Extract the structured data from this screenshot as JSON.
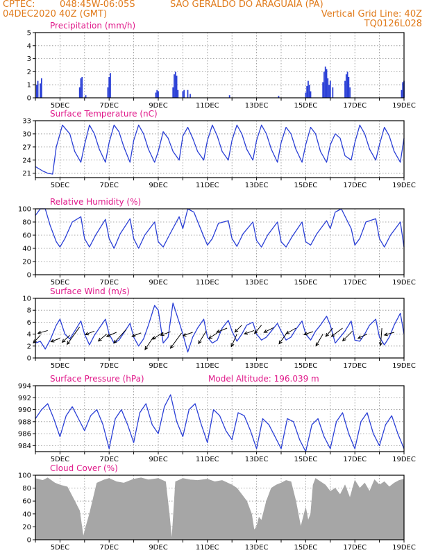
{
  "header": {
    "line1_left": "CPTEC:",
    "line1_coords": "048:45W-06:05S",
    "line1_station": "SAO GERALDO DO ARAGUAIA (PA)",
    "line2_left": "04DEC2020 40Z (GMT)",
    "line2_right": "Vertical Grid Line: 40Z",
    "line3_right": "TQ0126L028",
    "colors": {
      "header": "#e07a1a",
      "title": "#e0198a",
      "series": "#2a3fd6",
      "cloud": "#a6a6a6"
    }
  },
  "chart_data": [
    {
      "id": "precip",
      "type": "bar",
      "title": "Precipitation (mm/h)",
      "ylim": [
        0,
        5
      ],
      "yticks": [
        0,
        1,
        2,
        3,
        4,
        5
      ],
      "xlim": [
        4.0,
        19.0
      ],
      "xtick_labels": [
        "5DEC",
        "7DEC",
        "9DEC",
        "11DEC",
        "13DEC",
        "15DEC",
        "17DEC",
        "19DEC"
      ],
      "x": [
        4.05,
        4.1,
        4.2,
        4.25,
        5.8,
        5.85,
        5.9,
        6.05,
        6.95,
        7.0,
        7.05,
        8.9,
        8.95,
        9.0,
        9.6,
        9.65,
        9.7,
        9.75,
        9.8,
        10.0,
        10.05,
        10.2,
        10.3,
        11.9,
        13.9,
        15.0,
        15.05,
        15.1,
        15.15,
        15.2,
        15.7,
        15.75,
        15.8,
        15.85,
        15.9,
        15.95,
        16.0,
        16.1,
        16.6,
        16.65,
        16.7,
        16.75,
        16.8,
        18.9,
        18.95,
        19.0
      ],
      "values": [
        1.0,
        1.3,
        1.1,
        1.5,
        0.8,
        1.5,
        1.6,
        0.2,
        0.8,
        1.6,
        1.9,
        0.4,
        0.6,
        0.5,
        0.8,
        1.8,
        2.0,
        1.7,
        0.6,
        0.5,
        0.6,
        0.6,
        0.3,
        0.2,
        0.15,
        0.4,
        0.9,
        1.3,
        1.0,
        0.5,
        1.2,
        2.0,
        2.4,
        2.2,
        1.5,
        1.0,
        1.3,
        0.8,
        1.3,
        1.8,
        2.0,
        1.6,
        0.8,
        0.6,
        1.2,
        1.3
      ]
    },
    {
      "id": "temp",
      "type": "line",
      "title": "Surface Temperature (nC)",
      "ylim": [
        20,
        33
      ],
      "yticks": [
        21,
        24,
        27,
        30,
        33
      ],
      "xlim": [
        4.0,
        19.0
      ],
      "xtick_labels": [
        "5DEC",
        "7DEC",
        "9DEC",
        "11DEC",
        "13DEC",
        "15DEC",
        "17DEC",
        "19DEC"
      ],
      "x": [
        4.0,
        4.3,
        4.5,
        4.7,
        4.85,
        5.1,
        5.4,
        5.6,
        5.85,
        6.0,
        6.2,
        6.4,
        6.6,
        6.85,
        7.0,
        7.2,
        7.4,
        7.6,
        7.85,
        8.0,
        8.2,
        8.4,
        8.6,
        8.85,
        9.0,
        9.2,
        9.4,
        9.6,
        9.85,
        10.0,
        10.2,
        10.4,
        10.6,
        10.85,
        11.0,
        11.2,
        11.4,
        11.6,
        11.85,
        12.0,
        12.2,
        12.4,
        12.6,
        12.85,
        13.0,
        13.2,
        13.4,
        13.6,
        13.85,
        14.0,
        14.2,
        14.4,
        14.6,
        14.85,
        15.0,
        15.2,
        15.4,
        15.6,
        15.85,
        16.0,
        16.2,
        16.4,
        16.6,
        16.85,
        17.0,
        17.2,
        17.4,
        17.6,
        17.85,
        18.0,
        18.2,
        18.4,
        18.6,
        18.85,
        19.0
      ],
      "values": [
        22.5,
        21.5,
        21.0,
        20.8,
        27.0,
        32.0,
        30.0,
        26.0,
        23.5,
        27.5,
        32.0,
        30.0,
        26.5,
        23.5,
        28.0,
        32.0,
        30.5,
        27.0,
        23.5,
        28.5,
        32.0,
        30.0,
        26.5,
        23.5,
        26.0,
        30.5,
        29.0,
        26.0,
        24.0,
        29.5,
        31.5,
        29.0,
        26.0,
        24.0,
        28.5,
        32.0,
        29.5,
        26.0,
        24.0,
        28.5,
        32.0,
        30.0,
        26.5,
        24.0,
        28.5,
        32.0,
        30.0,
        26.5,
        23.5,
        28.0,
        31.5,
        30.0,
        26.5,
        23.5,
        27.5,
        31.5,
        30.0,
        26.0,
        23.5,
        27.5,
        30.0,
        29.0,
        25.0,
        24.0,
        28.0,
        32.0,
        30.0,
        26.5,
        24.0,
        27.5,
        31.5,
        29.5,
        26.0,
        23.5,
        29.0
      ]
    },
    {
      "id": "rh",
      "type": "line",
      "title": "Relative Humidity (%)",
      "ylim": [
        0,
        100
      ],
      "yticks": [
        0,
        20,
        40,
        60,
        80,
        100
      ],
      "xlim": [
        4.0,
        19.0
      ],
      "xtick_labels": [
        "5DEC",
        "7DEC",
        "9DEC",
        "11DEC",
        "13DEC",
        "15DEC",
        "17DEC",
        "19DEC"
      ],
      "x": [
        4.0,
        4.2,
        4.4,
        4.6,
        4.85,
        5.0,
        5.2,
        5.5,
        5.85,
        6.0,
        6.2,
        6.45,
        6.85,
        7.0,
        7.2,
        7.45,
        7.85,
        8.0,
        8.2,
        8.45,
        8.85,
        9.0,
        9.2,
        9.45,
        9.85,
        10.0,
        10.2,
        10.45,
        10.85,
        11.0,
        11.2,
        11.45,
        11.85,
        12.0,
        12.2,
        12.45,
        12.85,
        13.0,
        13.2,
        13.45,
        13.85,
        14.0,
        14.2,
        14.45,
        14.85,
        15.0,
        15.2,
        15.45,
        15.85,
        16.0,
        16.2,
        16.45,
        16.85,
        17.0,
        17.2,
        17.45,
        17.85,
        18.0,
        18.2,
        18.45,
        18.85,
        19.0
      ],
      "values": [
        90,
        100,
        100,
        75,
        50,
        42,
        55,
        80,
        88,
        55,
        42,
        60,
        84,
        55,
        40,
        62,
        85,
        55,
        40,
        60,
        80,
        50,
        42,
        60,
        88,
        70,
        100,
        95,
        58,
        45,
        55,
        78,
        82,
        55,
        43,
        62,
        80,
        52,
        42,
        60,
        80,
        50,
        42,
        58,
        80,
        50,
        45,
        62,
        82,
        70,
        95,
        100,
        70,
        45,
        55,
        80,
        85,
        55,
        42,
        60,
        80,
        42
      ]
    },
    {
      "id": "wind",
      "type": "line",
      "title": "Surface Wind (m/s)",
      "ylim": [
        0,
        10
      ],
      "yticks": [
        0,
        2,
        4,
        6,
        8,
        10
      ],
      "xlim": [
        4.0,
        19.0
      ],
      "xtick_labels": [
        "5DEC",
        "7DEC",
        "9DEC",
        "11DEC",
        "13DEC",
        "15DEC",
        "17DEC",
        "19DEC"
      ],
      "x": [
        4.0,
        4.2,
        4.4,
        4.6,
        4.85,
        5.0,
        5.2,
        5.4,
        5.6,
        5.85,
        6.0,
        6.2,
        6.4,
        6.6,
        6.85,
        7.0,
        7.2,
        7.4,
        7.6,
        7.85,
        8.0,
        8.2,
        8.4,
        8.6,
        8.85,
        9.0,
        9.2,
        9.4,
        9.6,
        9.85,
        10.0,
        10.2,
        10.4,
        10.6,
        10.85,
        11.0,
        11.2,
        11.4,
        11.6,
        11.85,
        12.0,
        12.2,
        12.4,
        12.6,
        12.85,
        13.0,
        13.2,
        13.4,
        13.6,
        13.85,
        14.0,
        14.2,
        14.4,
        14.6,
        14.85,
        15.0,
        15.2,
        15.4,
        15.6,
        15.85,
        16.0,
        16.2,
        16.4,
        16.6,
        16.85,
        17.0,
        17.2,
        17.4,
        17.6,
        17.85,
        18.0,
        18.2,
        18.4,
        18.6,
        18.85,
        19.0
      ],
      "values": [
        2.5,
        2.8,
        1.5,
        3.0,
        5.5,
        6.5,
        4.0,
        3.2,
        4.5,
        6.2,
        4.0,
        2.2,
        3.8,
        5.0,
        6.5,
        4.0,
        2.5,
        3.0,
        4.2,
        5.8,
        3.5,
        2.0,
        3.2,
        5.5,
        8.8,
        8.0,
        2.5,
        3.5,
        9.2,
        6.0,
        4.0,
        1.0,
        3.5,
        5.0,
        6.5,
        3.5,
        2.5,
        3.0,
        5.0,
        6.3,
        4.5,
        2.8,
        4.0,
        5.5,
        6.0,
        4.0,
        3.0,
        3.5,
        4.5,
        5.8,
        4.5,
        3.0,
        3.5,
        4.8,
        6.2,
        4.0,
        3.0,
        4.5,
        5.5,
        7.0,
        5.5,
        2.5,
        3.5,
        4.5,
        6.2,
        3.0,
        2.8,
        4.0,
        5.5,
        6.5,
        3.5,
        2.2,
        3.5,
        5.5,
        7.5,
        4.0
      ],
      "vectors": [
        {
          "x": 4.2,
          "y": 3.8,
          "dx": -10,
          "dy": 11
        },
        {
          "x": 4.5,
          "y": 4.6,
          "dx": -14,
          "dy": 4
        },
        {
          "x": 5.0,
          "y": 3.3,
          "dx": -13,
          "dy": 5
        },
        {
          "x": 5.4,
          "y": 3.8,
          "dx": -11,
          "dy": 10
        },
        {
          "x": 5.8,
          "y": 5.2,
          "dx": -18,
          "dy": 25
        },
        {
          "x": 6.4,
          "y": 4.5,
          "dx": -13,
          "dy": 5
        },
        {
          "x": 6.9,
          "y": 4.0,
          "dx": -12,
          "dy": 10
        },
        {
          "x": 7.3,
          "y": 4.3,
          "dx": -14,
          "dy": 6
        },
        {
          "x": 7.7,
          "y": 4.8,
          "dx": -18,
          "dy": 20
        },
        {
          "x": 8.3,
          "y": 4.2,
          "dx": -13,
          "dy": 5
        },
        {
          "x": 8.8,
          "y": 3.5,
          "dx": -12,
          "dy": 18
        },
        {
          "x": 9.2,
          "y": 4.3,
          "dx": -15,
          "dy": 10
        },
        {
          "x": 9.5,
          "y": 4.4,
          "dx": -14,
          "dy": 5
        },
        {
          "x": 9.95,
          "y": 4.2,
          "dx": -16,
          "dy": 22
        },
        {
          "x": 10.4,
          "y": 4.3,
          "dx": -14,
          "dy": 5
        },
        {
          "x": 10.95,
          "y": 4.5,
          "dx": -11,
          "dy": 18
        },
        {
          "x": 11.4,
          "y": 4.2,
          "dx": -12,
          "dy": 8
        },
        {
          "x": 11.8,
          "y": 5.0,
          "dx": -15,
          "dy": 6
        },
        {
          "x": 12.2,
          "y": 4.0,
          "dx": -8,
          "dy": 18
        },
        {
          "x": 12.4,
          "y": 5.5,
          "dx": -10,
          "dy": 10
        },
        {
          "x": 12.9,
          "y": 4.6,
          "dx": -14,
          "dy": 5
        },
        {
          "x": 13.2,
          "y": 5.5,
          "dx": -10,
          "dy": 12
        },
        {
          "x": 13.7,
          "y": 5.1,
          "dx": -14,
          "dy": 7
        },
        {
          "x": 14.2,
          "y": 4.0,
          "dx": -10,
          "dy": 14
        },
        {
          "x": 14.6,
          "y": 5.0,
          "dx": -14,
          "dy": 8
        },
        {
          "x": 15.3,
          "y": 4.4,
          "dx": -13,
          "dy": 4
        },
        {
          "x": 15.7,
          "y": 4.0,
          "dx": -10,
          "dy": 17
        },
        {
          "x": 16.1,
          "y": 5.0,
          "dx": -10,
          "dy": 12
        },
        {
          "x": 16.5,
          "y": 5.0,
          "dx": -16,
          "dy": 12
        },
        {
          "x": 16.9,
          "y": 4.5,
          "dx": -14,
          "dy": 14
        },
        {
          "x": 17.5,
          "y": 4.0,
          "dx": -13,
          "dy": 6
        },
        {
          "x": 18.1,
          "y": 5.0,
          "dx": -2,
          "dy": 25
        },
        {
          "x": 18.6,
          "y": 4.3,
          "dx": -14,
          "dy": 4
        }
      ]
    },
    {
      "id": "pres",
      "type": "line",
      "title": "Surface Pressure (hPa)",
      "subtitle": "Model Altitude: 196.039 m",
      "ylim": [
        983,
        994
      ],
      "yticks": [
        984,
        986,
        988,
        990,
        992,
        994
      ],
      "xlim": [
        4.0,
        19.0
      ],
      "xtick_labels": [
        "5DEC",
        "7DEC",
        "9DEC",
        "11DEC",
        "13DEC",
        "15DEC",
        "17DEC",
        "19DEC"
      ],
      "x": [
        4.0,
        4.25,
        4.5,
        4.75,
        5.0,
        5.25,
        5.5,
        5.75,
        6.0,
        6.25,
        6.5,
        6.75,
        7.0,
        7.25,
        7.5,
        7.75,
        8.0,
        8.25,
        8.5,
        8.75,
        9.0,
        9.25,
        9.5,
        9.75,
        10.0,
        10.25,
        10.5,
        10.75,
        11.0,
        11.25,
        11.5,
        11.75,
        12.0,
        12.25,
        12.5,
        12.75,
        13.0,
        13.25,
        13.5,
        13.75,
        14.0,
        14.25,
        14.5,
        14.75,
        15.0,
        15.25,
        15.5,
        15.75,
        16.0,
        16.25,
        16.5,
        16.75,
        17.0,
        17.25,
        17.5,
        17.75,
        18.0,
        18.25,
        18.5,
        18.75,
        19.0
      ],
      "values": [
        988.5,
        990,
        991,
        988.5,
        985.5,
        989,
        990.5,
        988.5,
        986.5,
        989,
        990,
        987.5,
        983.5,
        988.5,
        990,
        987.5,
        984.5,
        989.5,
        991,
        987.5,
        986,
        990.5,
        992.5,
        988,
        985.5,
        990,
        991,
        987.5,
        984.5,
        990,
        989,
        986.5,
        985,
        989.5,
        989,
        986.5,
        983.5,
        988.5,
        987.5,
        985.5,
        983.5,
        988.5,
        988,
        985,
        983,
        987.5,
        988.5,
        985.5,
        983.5,
        988,
        989.5,
        986,
        983.5,
        988,
        989.5,
        986,
        984,
        987.5,
        989,
        986,
        983.5
      ]
    },
    {
      "id": "cloud",
      "type": "area",
      "title": "Cloud Cover (%)",
      "ylim": [
        0,
        100
      ],
      "yticks": [
        0,
        20,
        40,
        60,
        80,
        100
      ],
      "xlim": [
        4.0,
        19.0
      ],
      "xtick_labels": [
        "5DEC",
        "7DEC",
        "9DEC",
        "11DEC",
        "13DEC",
        "15DEC",
        "17DEC",
        "19DEC"
      ],
      "x": [
        4.0,
        4.3,
        4.5,
        4.8,
        5.0,
        5.3,
        5.6,
        5.8,
        5.95,
        6.05,
        6.2,
        6.5,
        6.8,
        7.0,
        7.3,
        7.6,
        8.0,
        8.3,
        8.6,
        9.0,
        9.3,
        9.45,
        9.55,
        9.7,
        10.0,
        10.3,
        10.6,
        11.0,
        11.3,
        11.6,
        12.0,
        12.2,
        12.4,
        12.6,
        12.8,
        12.9,
        13.0,
        13.1,
        13.2,
        13.4,
        13.6,
        13.8,
        14.0,
        14.2,
        14.4,
        14.6,
        14.8,
        15.0,
        15.1,
        15.2,
        15.3,
        15.4,
        15.6,
        15.8,
        16.0,
        16.2,
        16.4,
        16.6,
        16.8,
        17.0,
        17.2,
        17.4,
        17.6,
        17.8,
        18.0,
        18.2,
        18.4,
        18.6,
        18.8,
        19.0
      ],
      "values": [
        95,
        92,
        96,
        88,
        85,
        82,
        60,
        45,
        5,
        20,
        40,
        88,
        93,
        95,
        90,
        88,
        94,
        96,
        93,
        95,
        90,
        40,
        0,
        90,
        95,
        93,
        92,
        94,
        90,
        92,
        85,
        80,
        70,
        60,
        40,
        15,
        20,
        35,
        30,
        60,
        80,
        85,
        88,
        92,
        90,
        60,
        20,
        50,
        30,
        40,
        85,
        95,
        90,
        85,
        75,
        80,
        70,
        85,
        65,
        92,
        80,
        88,
        75,
        93,
        85,
        90,
        82,
        88,
        92,
        94
      ]
    }
  ]
}
